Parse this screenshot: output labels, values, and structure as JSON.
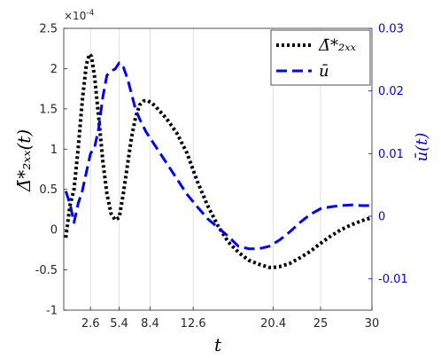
{
  "chart_data": {
    "type": "line",
    "xlabel": "t",
    "ylabel_left": "Δ̄*₂ₓₓ(t)",
    "ylabel_right": "ū(t)",
    "left_exponent": "×10",
    "left_exponent_power": "-4",
    "x_range": [
      0,
      30
    ],
    "y_left_range": [
      -1,
      2.5
    ],
    "y_right_range": [
      -0.015,
      0.03
    ],
    "x_ticks": [
      {
        "v": 2.6,
        "label": "2.6"
      },
      {
        "v": 5.4,
        "label": "5.4"
      },
      {
        "v": 8.4,
        "label": "8.4"
      },
      {
        "v": 12.6,
        "label": "12.6"
      },
      {
        "v": 20.4,
        "label": "20.4"
      },
      {
        "v": 25,
        "label": "25"
      },
      {
        "v": 30,
        "label": "30"
      }
    ],
    "y_left_ticks": [
      {
        "v": -1,
        "label": "-1"
      },
      {
        "v": -0.5,
        "label": "-0.5"
      },
      {
        "v": 0,
        "label": "0"
      },
      {
        "v": 0.5,
        "label": "0.5"
      },
      {
        "v": 1,
        "label": "1"
      },
      {
        "v": 1.5,
        "label": "1.5"
      },
      {
        "v": 2,
        "label": "2"
      },
      {
        "v": 2.5,
        "label": "2.5"
      }
    ],
    "y_right_ticks": [
      {
        "v": -0.01,
        "label": "-0.01"
      },
      {
        "v": 0,
        "label": "0"
      },
      {
        "v": 0.01,
        "label": "0.01"
      },
      {
        "v": 0.02,
        "label": "0.02"
      },
      {
        "v": 0.03,
        "label": "0.03"
      }
    ],
    "vertical_gridlines_at": [
      2.6,
      5.4,
      8.4,
      12.6,
      20.4,
      25
    ],
    "legend_position": "top-right",
    "series": [
      {
        "name": "Δ̄*₂ₓₓ",
        "axis": "left",
        "style": "dotted",
        "color": "#000000",
        "x": [
          0.2,
          0.6,
          1.0,
          1.4,
          1.8,
          2.2,
          2.5,
          2.7,
          3.0,
          3.4,
          3.8,
          4.2,
          4.6,
          5.0,
          5.4,
          5.8,
          6.2,
          6.6,
          7.0,
          7.4,
          7.8,
          8.2,
          8.6,
          9.0,
          9.5,
          10,
          11,
          12,
          13,
          14,
          15,
          16,
          17,
          18,
          19,
          20,
          20.4,
          21,
          22,
          23,
          24,
          25,
          26,
          27,
          28,
          29,
          30
        ],
        "y": [
          -0.1,
          0.3,
          0.5,
          1.0,
          1.6,
          2.05,
          2.18,
          2.15,
          1.9,
          1.4,
          0.85,
          0.45,
          0.2,
          0.12,
          0.15,
          0.45,
          0.8,
          1.15,
          1.4,
          1.55,
          1.6,
          1.6,
          1.57,
          1.52,
          1.45,
          1.38,
          1.2,
          0.95,
          0.6,
          0.3,
          0.05,
          -0.15,
          -0.28,
          -0.38,
          -0.43,
          -0.47,
          -0.47,
          -0.46,
          -0.42,
          -0.35,
          -0.27,
          -0.17,
          -0.08,
          0,
          0.06,
          0.11,
          0.15
        ]
      },
      {
        "name": "ū",
        "axis": "right",
        "style": "dashed",
        "color": "#0000ff",
        "x": [
          0.2,
          0.6,
          1.0,
          1.4,
          1.8,
          2.2,
          2.6,
          3.0,
          3.4,
          3.8,
          4.2,
          4.6,
          5.0,
          5.4,
          5.8,
          6.2,
          6.6,
          7.0,
          7.4,
          8.0,
          9.0,
          10,
          11,
          12,
          13,
          14,
          15,
          16,
          17,
          18,
          19,
          20,
          21,
          22,
          23,
          24,
          25,
          26,
          27,
          28,
          29,
          30
        ],
        "y": [
          0.004,
          0.002,
          -0.001,
          0.002,
          0.004,
          0.007,
          0.01,
          0.011,
          0.014,
          0.019,
          0.0225,
          0.0232,
          0.0235,
          0.0245,
          0.0238,
          0.022,
          0.0195,
          0.017,
          0.0155,
          0.0135,
          0.011,
          0.0085,
          0.006,
          0.0035,
          0.0015,
          -0.0004,
          -0.0018,
          -0.0032,
          -0.0048,
          -0.0052,
          -0.0052,
          -0.0048,
          -0.0038,
          -0.0025,
          -0.001,
          0.0003,
          0.0012,
          0.0015,
          0.0017,
          0.0018,
          0.0017,
          0.0017
        ]
      }
    ]
  }
}
